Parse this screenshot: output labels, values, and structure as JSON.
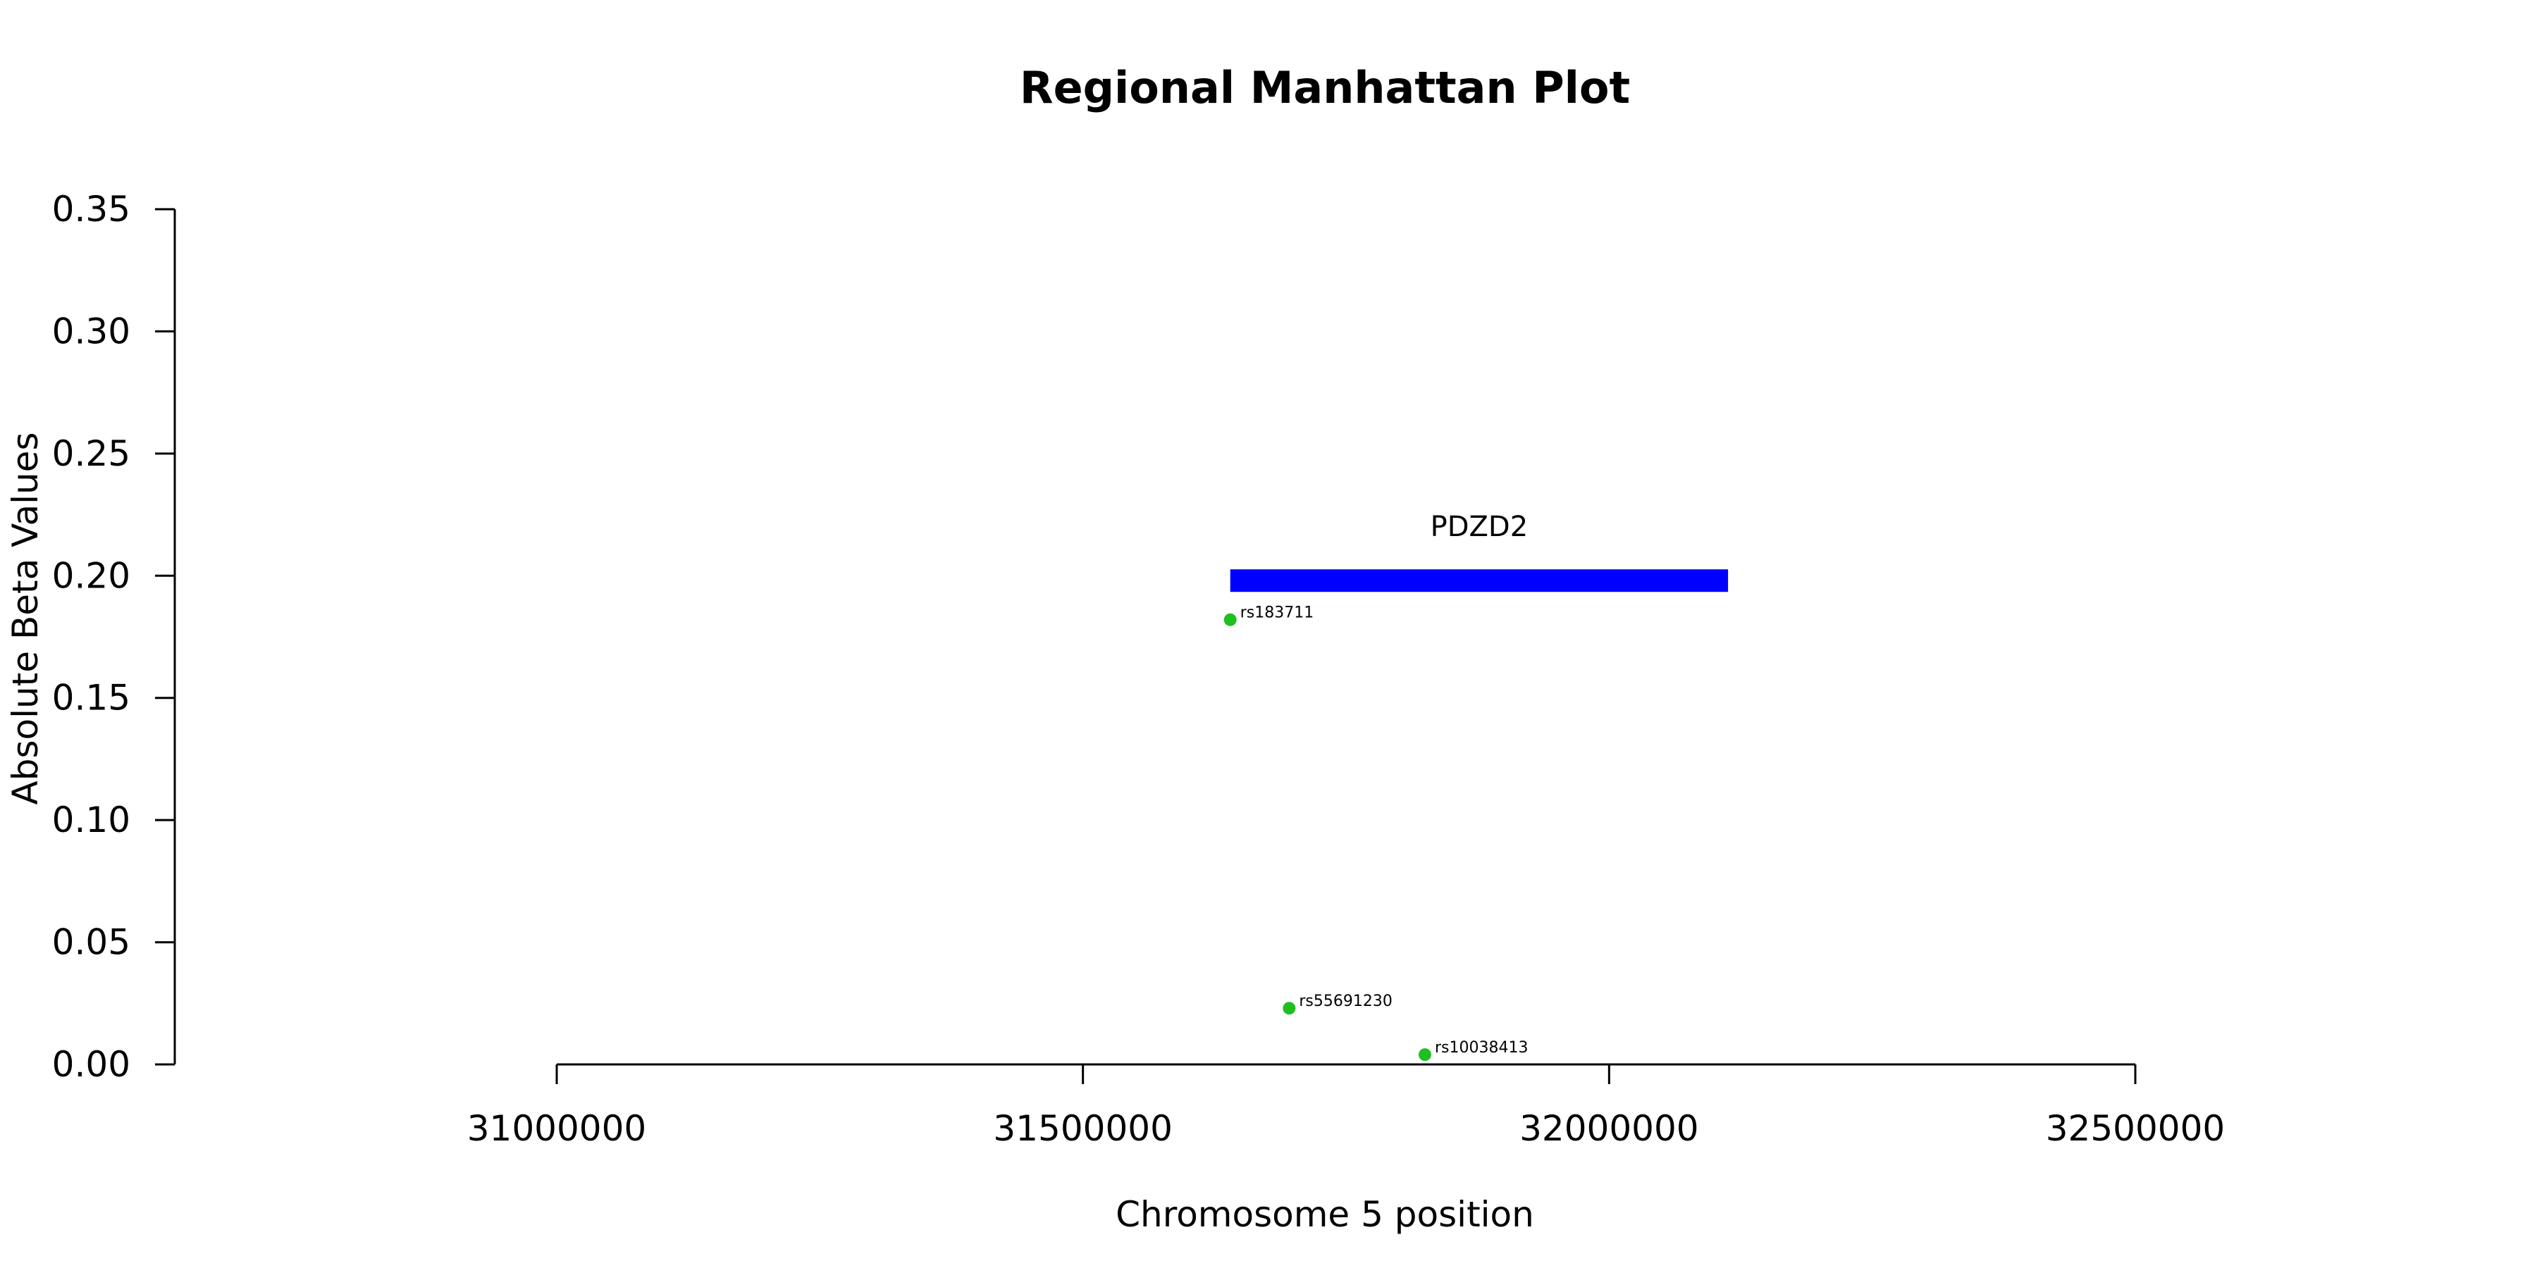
{
  "chart_data": {
    "type": "scatter",
    "title": "Regional Manhattan Plot",
    "xlabel": "Chromosome 5 position",
    "ylabel": "Absolute Beta Values",
    "xlim": [
      31000000,
      32500000
    ],
    "ylim": [
      0,
      0.35
    ],
    "x_ticks": [
      31000000,
      31500000,
      32000000,
      32500000
    ],
    "x_tick_labels": [
      "31000000",
      "31500000",
      "32000000",
      "32500000"
    ],
    "y_ticks": [
      0,
      0.05,
      0.1,
      0.15,
      0.2,
      0.25,
      0.3,
      0.35
    ],
    "y_tick_labels": [
      "0.00",
      "0.05",
      "0.10",
      "0.15",
      "0.20",
      "0.25",
      "0.30",
      "0.35"
    ],
    "grid": false,
    "point_color": "#1fbf1f",
    "points": [
      {
        "label": "rs183711",
        "x": 31640000,
        "y": 0.182
      },
      {
        "label": "rs55691230",
        "x": 31696000,
        "y": 0.023
      },
      {
        "label": "rs10038413",
        "x": 31825000,
        "y": 0.004
      }
    ],
    "genes": [
      {
        "name": "PDZD2",
        "start": 31640000,
        "end": 32113000,
        "y": 0.198,
        "color": "#0000ff"
      }
    ]
  }
}
